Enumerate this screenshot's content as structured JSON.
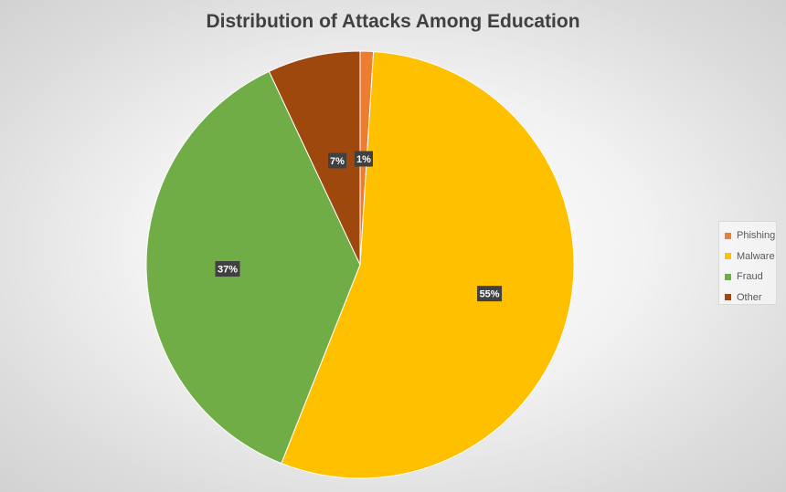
{
  "chart_data": {
    "type": "pie",
    "title": "Distribution of Attacks Among Education",
    "categories": [
      "Phishing",
      "Malware",
      "Fraud",
      "Other"
    ],
    "values": [
      1,
      55,
      37,
      7
    ],
    "data_labels": [
      "1%",
      "55%",
      "37%",
      "7%"
    ],
    "colors": [
      "#ed7d31",
      "#ffc000",
      "#70ad47",
      "#9e480e"
    ],
    "legend_position": "right"
  }
}
